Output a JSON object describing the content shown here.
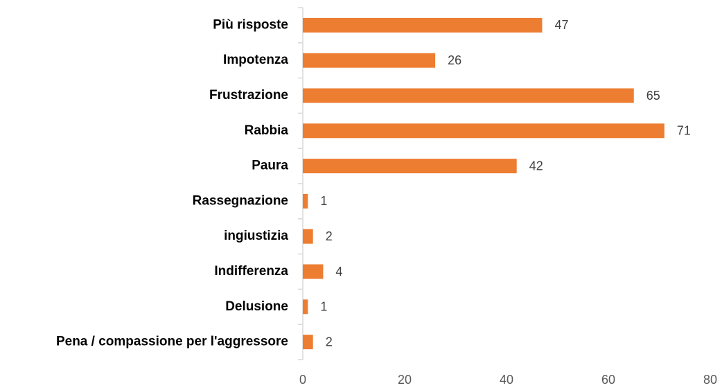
{
  "chart_data": {
    "type": "bar",
    "orientation": "horizontal",
    "categories": [
      "Più risposte",
      "Impotenza",
      "Frustrazione",
      "Rabbia",
      "Paura",
      "Rassegnazione",
      "ingiustizia",
      "Indifferenza",
      "Delusione",
      "Pena / compassione per l'aggressore"
    ],
    "values": [
      47,
      26,
      65,
      71,
      42,
      1,
      2,
      4,
      1,
      2
    ],
    "color": "#ed7d31",
    "xlim": [
      0,
      80
    ],
    "xticks": [
      0,
      20,
      40,
      60,
      80
    ],
    "grid": false
  }
}
